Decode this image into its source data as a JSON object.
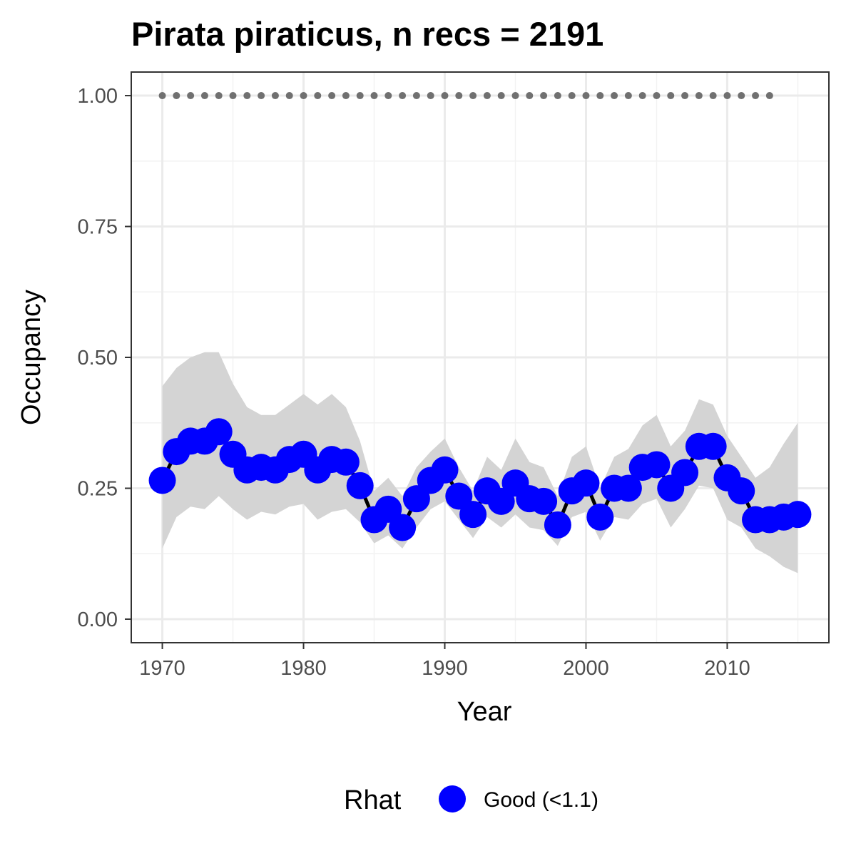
{
  "chart_data": {
    "type": "line",
    "title": "Pirata piraticus, n recs = 2191",
    "xlabel": "Year",
    "ylabel": "Occupancy",
    "xlim": [
      1967.8,
      2017.2
    ],
    "ylim": [
      -0.045,
      1.045
    ],
    "x_ticks": [
      1970,
      1980,
      1990,
      2000,
      2010
    ],
    "x_tick_labels": [
      "1970",
      "1980",
      "1990",
      "2000",
      "2010"
    ],
    "y_ticks": [
      0,
      0.25,
      0.5,
      0.75,
      1
    ],
    "y_tick_labels": [
      "0.00",
      "0.25",
      "0.50",
      "0.75",
      "1.00"
    ],
    "grid": true,
    "legend": {
      "title": "Rhat",
      "position": "bottom",
      "entries": [
        {
          "label": "Good (<1.1)",
          "color": "#0000ff"
        }
      ]
    },
    "colors": {
      "points": "#0000ff",
      "line": "#000000",
      "ribbon": "#d4d4d4",
      "reference_points": "#707070"
    },
    "series": [
      {
        "x": [
          1970,
          1971,
          1972,
          1973,
          1974,
          1975,
          1976,
          1977,
          1978,
          1979,
          1980,
          1981,
          1982,
          1983,
          1984,
          1985,
          1986,
          1987,
          1988,
          1989,
          1990,
          1991,
          1992,
          1993,
          1994,
          1995,
          1996,
          1997,
          1998,
          1999,
          2000,
          2001,
          2002,
          2003,
          2004,
          2005,
          2006,
          2007,
          2008,
          2009,
          2010,
          2011,
          2012,
          2013,
          2014,
          2015
        ],
        "y": [
          0.265,
          0.32,
          0.34,
          0.34,
          0.358,
          0.315,
          0.285,
          0.29,
          0.285,
          0.305,
          0.315,
          0.285,
          0.305,
          0.3,
          0.255,
          0.19,
          0.21,
          0.175,
          0.23,
          0.265,
          0.285,
          0.235,
          0.2,
          0.245,
          0.225,
          0.26,
          0.23,
          0.225,
          0.18,
          0.245,
          0.26,
          0.195,
          0.25,
          0.25,
          0.29,
          0.295,
          0.25,
          0.28,
          0.33,
          0.33,
          0.27,
          0.245,
          0.19,
          0.19,
          0.195,
          0.2
        ],
        "lower": [
          0.135,
          0.195,
          0.215,
          0.21,
          0.235,
          0.21,
          0.19,
          0.205,
          0.2,
          0.215,
          0.22,
          0.19,
          0.205,
          0.21,
          0.185,
          0.145,
          0.16,
          0.135,
          0.175,
          0.21,
          0.225,
          0.19,
          0.155,
          0.195,
          0.175,
          0.2,
          0.175,
          0.17,
          0.14,
          0.195,
          0.205,
          0.15,
          0.195,
          0.19,
          0.22,
          0.23,
          0.175,
          0.21,
          0.255,
          0.25,
          0.19,
          0.175,
          0.135,
          0.12,
          0.1,
          0.088
        ],
        "upper": [
          0.445,
          0.48,
          0.5,
          0.51,
          0.51,
          0.45,
          0.405,
          0.39,
          0.39,
          0.41,
          0.43,
          0.41,
          0.43,
          0.405,
          0.34,
          0.245,
          0.27,
          0.235,
          0.29,
          0.32,
          0.345,
          0.29,
          0.245,
          0.31,
          0.285,
          0.345,
          0.3,
          0.29,
          0.235,
          0.31,
          0.33,
          0.25,
          0.31,
          0.325,
          0.37,
          0.39,
          0.33,
          0.36,
          0.42,
          0.41,
          0.35,
          0.31,
          0.27,
          0.29,
          0.335,
          0.375
        ]
      },
      {
        "x": [
          1970,
          1971,
          1972,
          1973,
          1974,
          1975,
          1976,
          1977,
          1978,
          1979,
          1980,
          1981,
          1982,
          1983,
          1984,
          1985,
          1986,
          1987,
          1988,
          1989,
          1990,
          1991,
          1992,
          1993,
          1994,
          1995,
          1996,
          1997,
          1998,
          1999,
          2000,
          2001,
          2002,
          2003,
          2004,
          2005,
          2006,
          2007,
          2008,
          2009,
          2010,
          2011,
          2012,
          2013
        ],
        "y": [
          1,
          1,
          1,
          1,
          1,
          1,
          1,
          1,
          1,
          1,
          1,
          1,
          1,
          1,
          1,
          1,
          1,
          1,
          1,
          1,
          1,
          1,
          1,
          1,
          1,
          1,
          1,
          1,
          1,
          1,
          1,
          1,
          1,
          1,
          1,
          1,
          1,
          1,
          1,
          1,
          1,
          1,
          1,
          1
        ]
      }
    ]
  }
}
